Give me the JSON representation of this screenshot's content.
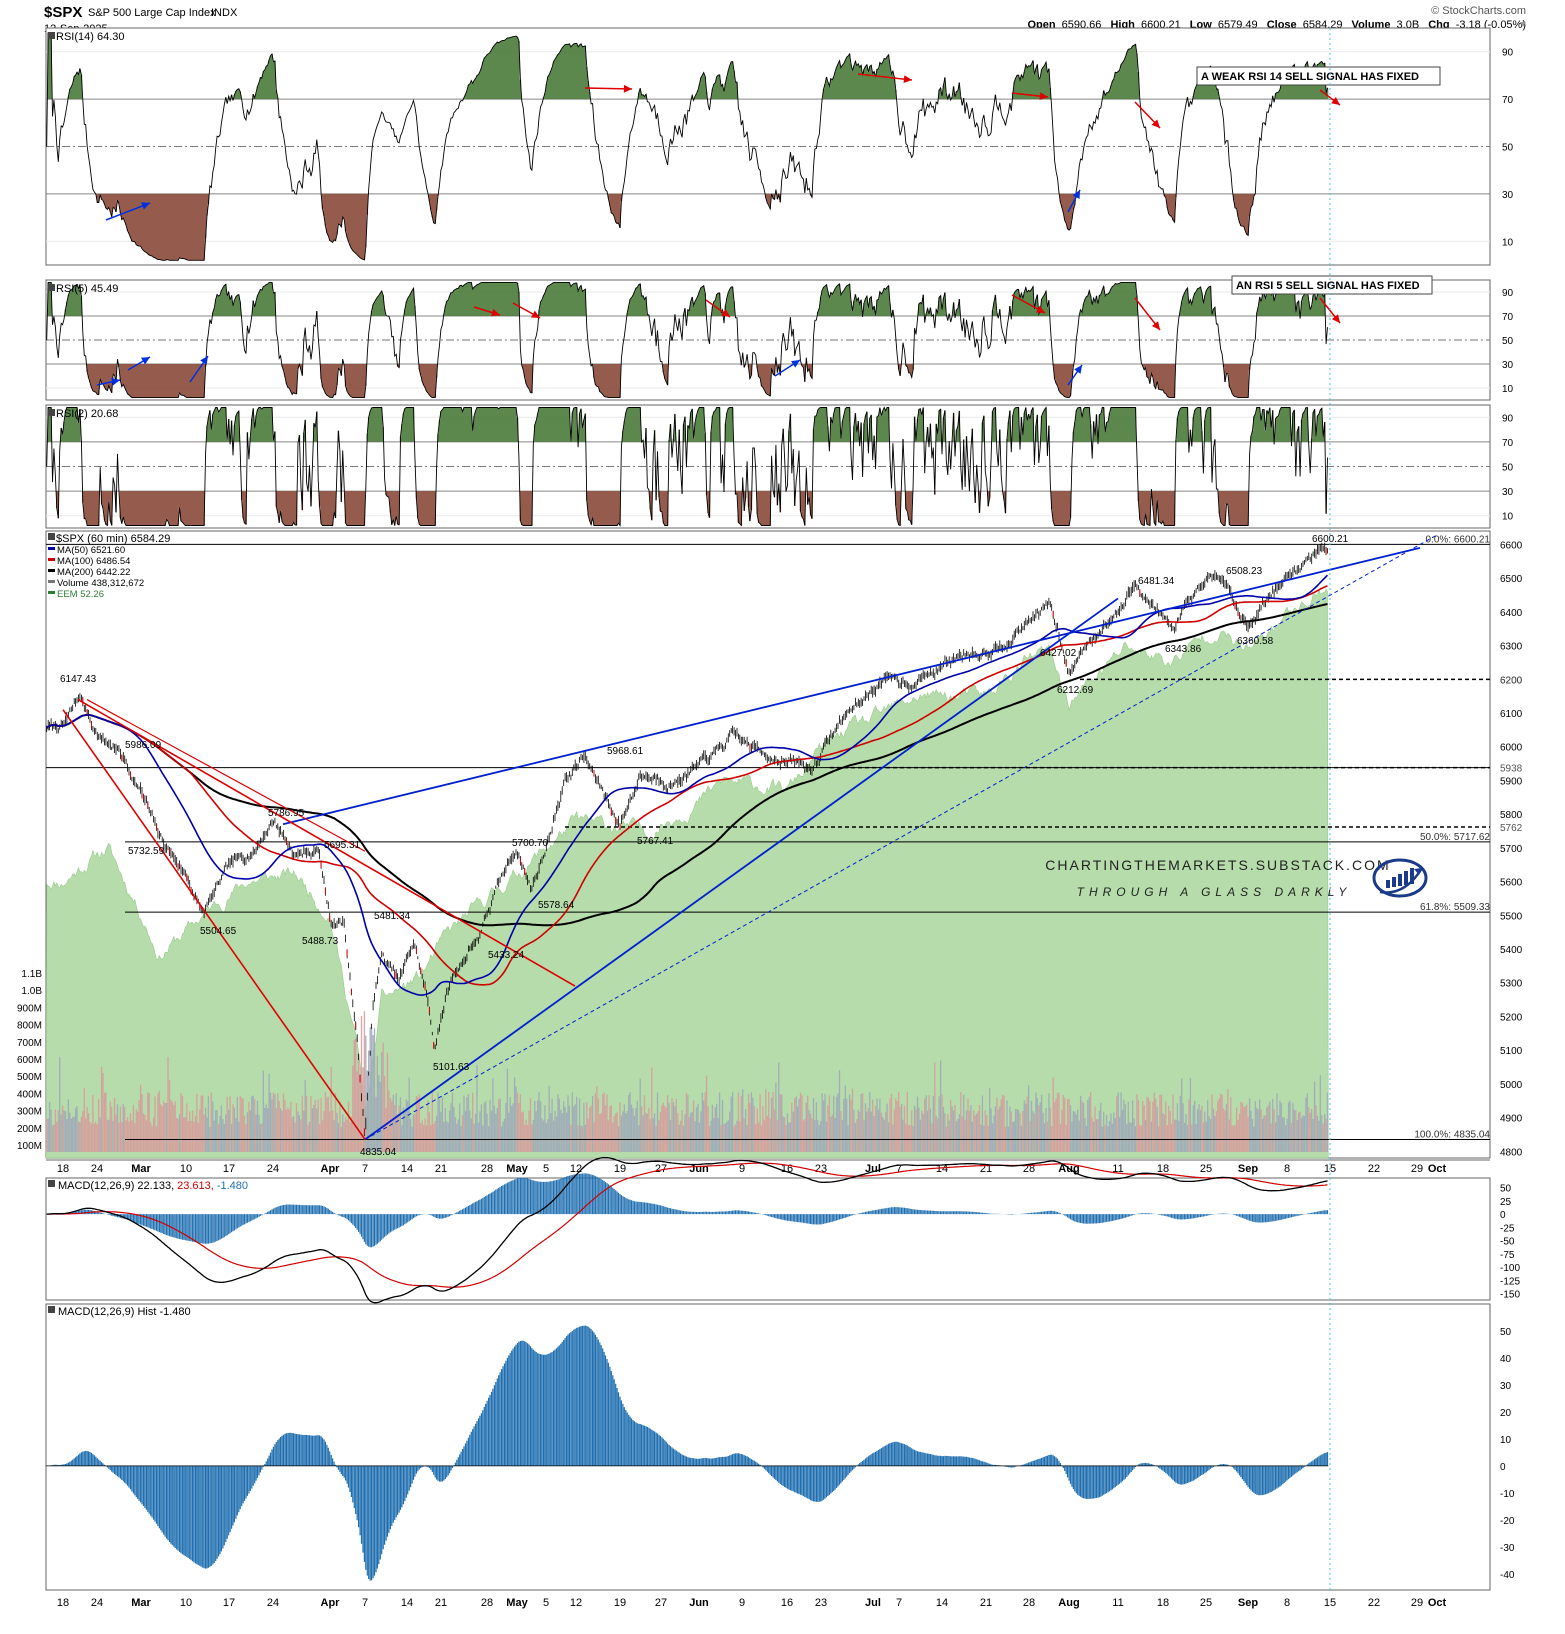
{
  "header": {
    "symbol": "$SPX",
    "name": "S&P 500 Large Cap Index",
    "exchange": "INDX",
    "date": "12-Sep-2025",
    "watermark": "© StockCharts.com",
    "quote": {
      "open_label": "Open",
      "open": "6590.66",
      "high_label": "High",
      "high": "6600.21",
      "low_label": "Low",
      "low": "6579.49",
      "close_label": "Close",
      "close": "6584.29",
      "volume_label": "Volume",
      "volume": "3.0B",
      "chg_label": "Chg",
      "chg": "-3.18 (-0.05%)"
    }
  },
  "chart_data": [
    {
      "type": "line",
      "title": "RSI(14) 64.30",
      "yticks": [
        10,
        30,
        50,
        70,
        90
      ],
      "ylim": [
        0,
        100
      ],
      "annotation": "A WEAK RSI 14 SELL SIGNAL HAS FIXED",
      "series": [
        {
          "name": "RSI(14)",
          "last": 64.3
        }
      ]
    },
    {
      "type": "line",
      "title": "RSI(5) 45.49",
      "yticks": [
        10,
        30,
        50,
        70,
        90
      ],
      "ylim": [
        0,
        100
      ],
      "annotation": "AN RSI 5 SELL SIGNAL HAS FIXED",
      "series": [
        {
          "name": "RSI(5)",
          "last": 45.49
        }
      ]
    },
    {
      "type": "line",
      "title": "RSI(2) 20.68",
      "yticks": [
        10,
        30,
        50,
        70,
        90
      ],
      "ylim": [
        0,
        100
      ],
      "series": [
        {
          "name": "RSI(2)",
          "last": 20.68
        }
      ]
    },
    {
      "type": "line",
      "title": "$SPX (60 min) 6584.29",
      "legend": [
        {
          "label": "MA(50) 6521.60",
          "color": "#0000aa"
        },
        {
          "label": "MA(100) 6486.54",
          "color": "#cc0000"
        },
        {
          "label": "MA(200) 6442.22",
          "color": "#000000"
        },
        {
          "label": "Volume 438,312,672",
          "color": "#777777"
        },
        {
          "label": "EEM 52.26",
          "color": "#2e7d32"
        }
      ],
      "ylim": [
        4780,
        6640
      ],
      "yticks": [
        4800,
        4900,
        5000,
        5100,
        5200,
        5300,
        5400,
        5500,
        5600,
        5700,
        5800,
        5900,
        6000,
        6100,
        6200,
        6300,
        6400,
        6500,
        6600
      ],
      "volume_ticks": [
        "100M",
        "200M",
        "300M",
        "400M",
        "500M",
        "600M",
        "700M",
        "800M",
        "900M",
        "1.0B",
        "1.1B"
      ],
      "x_labels": [
        "18",
        "24",
        "Mar",
        "10",
        "17",
        "24",
        "Apr",
        "7",
        "14",
        "21",
        "28",
        "May",
        "5",
        "12",
        "19",
        "27",
        "Jun",
        "9",
        "16",
        "23",
        "Jul",
        "7",
        "14",
        "21",
        "28",
        "Aug",
        "11",
        "18",
        "25",
        "Sep",
        "8",
        "15",
        "22",
        "29",
        "Oct"
      ],
      "swing_labels": [
        {
          "label": "6147.43",
          "value": 6147.43
        },
        {
          "label": "5986.09",
          "value": 5986.09
        },
        {
          "label": "5732.59",
          "value": 5732.59
        },
        {
          "label": "5504.65",
          "value": 5504.65
        },
        {
          "label": "5786.95",
          "value": 5786.95
        },
        {
          "label": "5695.31",
          "value": 5695.31
        },
        {
          "label": "5488.73",
          "value": 5488.73
        },
        {
          "label": "5481.34",
          "value": 5481.34
        },
        {
          "label": "4835.04",
          "value": 4835.04
        },
        {
          "label": "5101.63",
          "value": 5101.63
        },
        {
          "label": "5433.24",
          "value": 5433.24
        },
        {
          "label": "5700.70",
          "value": 5700.7
        },
        {
          "label": "5578.64",
          "value": 5578.64
        },
        {
          "label": "5968.61",
          "value": 5968.61
        },
        {
          "label": "5767.41",
          "value": 5767.41
        },
        {
          "label": "6427.02",
          "value": 6427.02
        },
        {
          "label": "6212.69",
          "value": 6212.69
        },
        {
          "label": "6481.34",
          "value": 6481.34
        },
        {
          "label": "6343.86",
          "value": 6343.86
        },
        {
          "label": "6508.23",
          "value": 6508.23
        },
        {
          "label": "6360.58",
          "value": 6360.58
        },
        {
          "label": "6600.21",
          "value": 6600.21
        }
      ],
      "fib_levels": [
        {
          "label": "0.0%: 6600.21",
          "value": 6600.21
        },
        {
          "label": "50.0%: 5717.62",
          "value": 5717.62
        },
        {
          "label": "61.8%: 5509.33",
          "value": 5509.33
        },
        {
          "label": "100.0%: 4835.04",
          "value": 4835.04
        }
      ],
      "right_markers": [
        {
          "label": "6200",
          "value": 6200
        },
        {
          "label": "5938",
          "value": 5938
        },
        {
          "label": "5762",
          "value": 5762
        }
      ],
      "branding": {
        "line1": "CHARTINGTHEMARKETS.SUBSTACK.COM",
        "line2": "THROUGH A GLASS DARKLY"
      },
      "series": [
        {
          "name": "$SPX",
          "last": 6584.29
        },
        {
          "name": "MA(50)",
          "last": 6521.6
        },
        {
          "name": "MA(100)",
          "last": 6486.54
        },
        {
          "name": "MA(200)",
          "last": 6442.22
        }
      ]
    },
    {
      "type": "line",
      "title": "MACD(12,26,9) 22.133, 23.613, -1.480",
      "title_parts": [
        "MACD(12,26,9)",
        "22.133,",
        "23.613,",
        "-1.480"
      ],
      "yticks": [
        50,
        25,
        0,
        -25,
        -50,
        -75,
        -100,
        -125,
        -150
      ],
      "ylim": [
        -162,
        68
      ]
    },
    {
      "type": "bar",
      "title": "MACD(12,26,9) Hist -1.480",
      "yticks": [
        50,
        40,
        30,
        20,
        10,
        0,
        -10,
        -20,
        -30,
        -40
      ],
      "ylim": [
        -46,
        60
      ]
    }
  ]
}
